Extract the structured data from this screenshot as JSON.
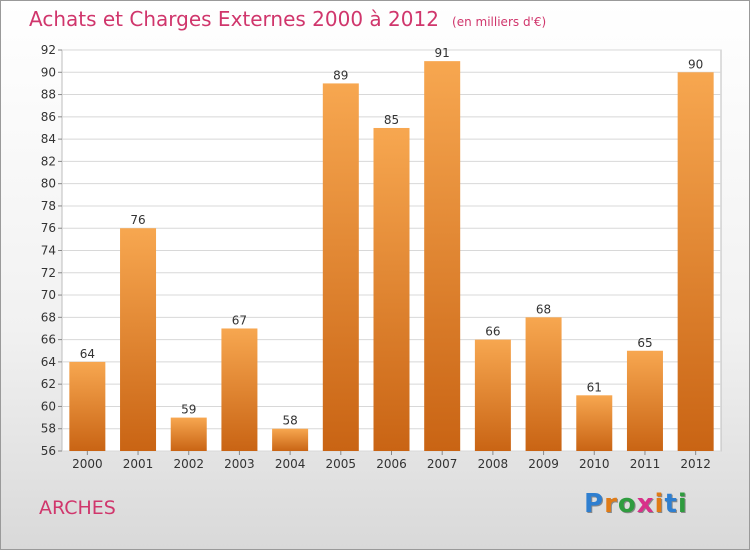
{
  "title": "Achats et Charges Externes 2000 à 2012",
  "subtitle": "(en milliers d'€)",
  "place": "ARCHES",
  "logo": {
    "text": "Proxiti",
    "letters": [
      {
        "char": "P",
        "color": "#2f7fd0"
      },
      {
        "char": "r",
        "color": "#e07b16"
      },
      {
        "char": "o",
        "color": "#2f9c3f"
      },
      {
        "char": "x",
        "color": "#d8318a"
      },
      {
        "char": "i",
        "color": "#e07b16"
      },
      {
        "char": "t",
        "color": "#2f7fd0"
      },
      {
        "char": "i",
        "color": "#2f9c3f"
      }
    ]
  },
  "colors": {
    "bar_top": "#f7a750",
    "bar_bottom": "#c96414",
    "title": "#d0366c",
    "grid": "#d8d8d8"
  },
  "chart_data": {
    "type": "bar",
    "categories": [
      "2000",
      "2001",
      "2002",
      "2003",
      "2004",
      "2005",
      "2006",
      "2007",
      "2008",
      "2009",
      "2010",
      "2011",
      "2012"
    ],
    "values": [
      64,
      76,
      59,
      67,
      58,
      89,
      85,
      91,
      66,
      68,
      61,
      65,
      90
    ],
    "ylim": [
      56,
      92
    ],
    "yticks": [
      56,
      58,
      60,
      62,
      64,
      66,
      68,
      70,
      72,
      74,
      76,
      78,
      80,
      82,
      84,
      86,
      88,
      90,
      92
    ],
    "grid": true,
    "legend": "none"
  }
}
